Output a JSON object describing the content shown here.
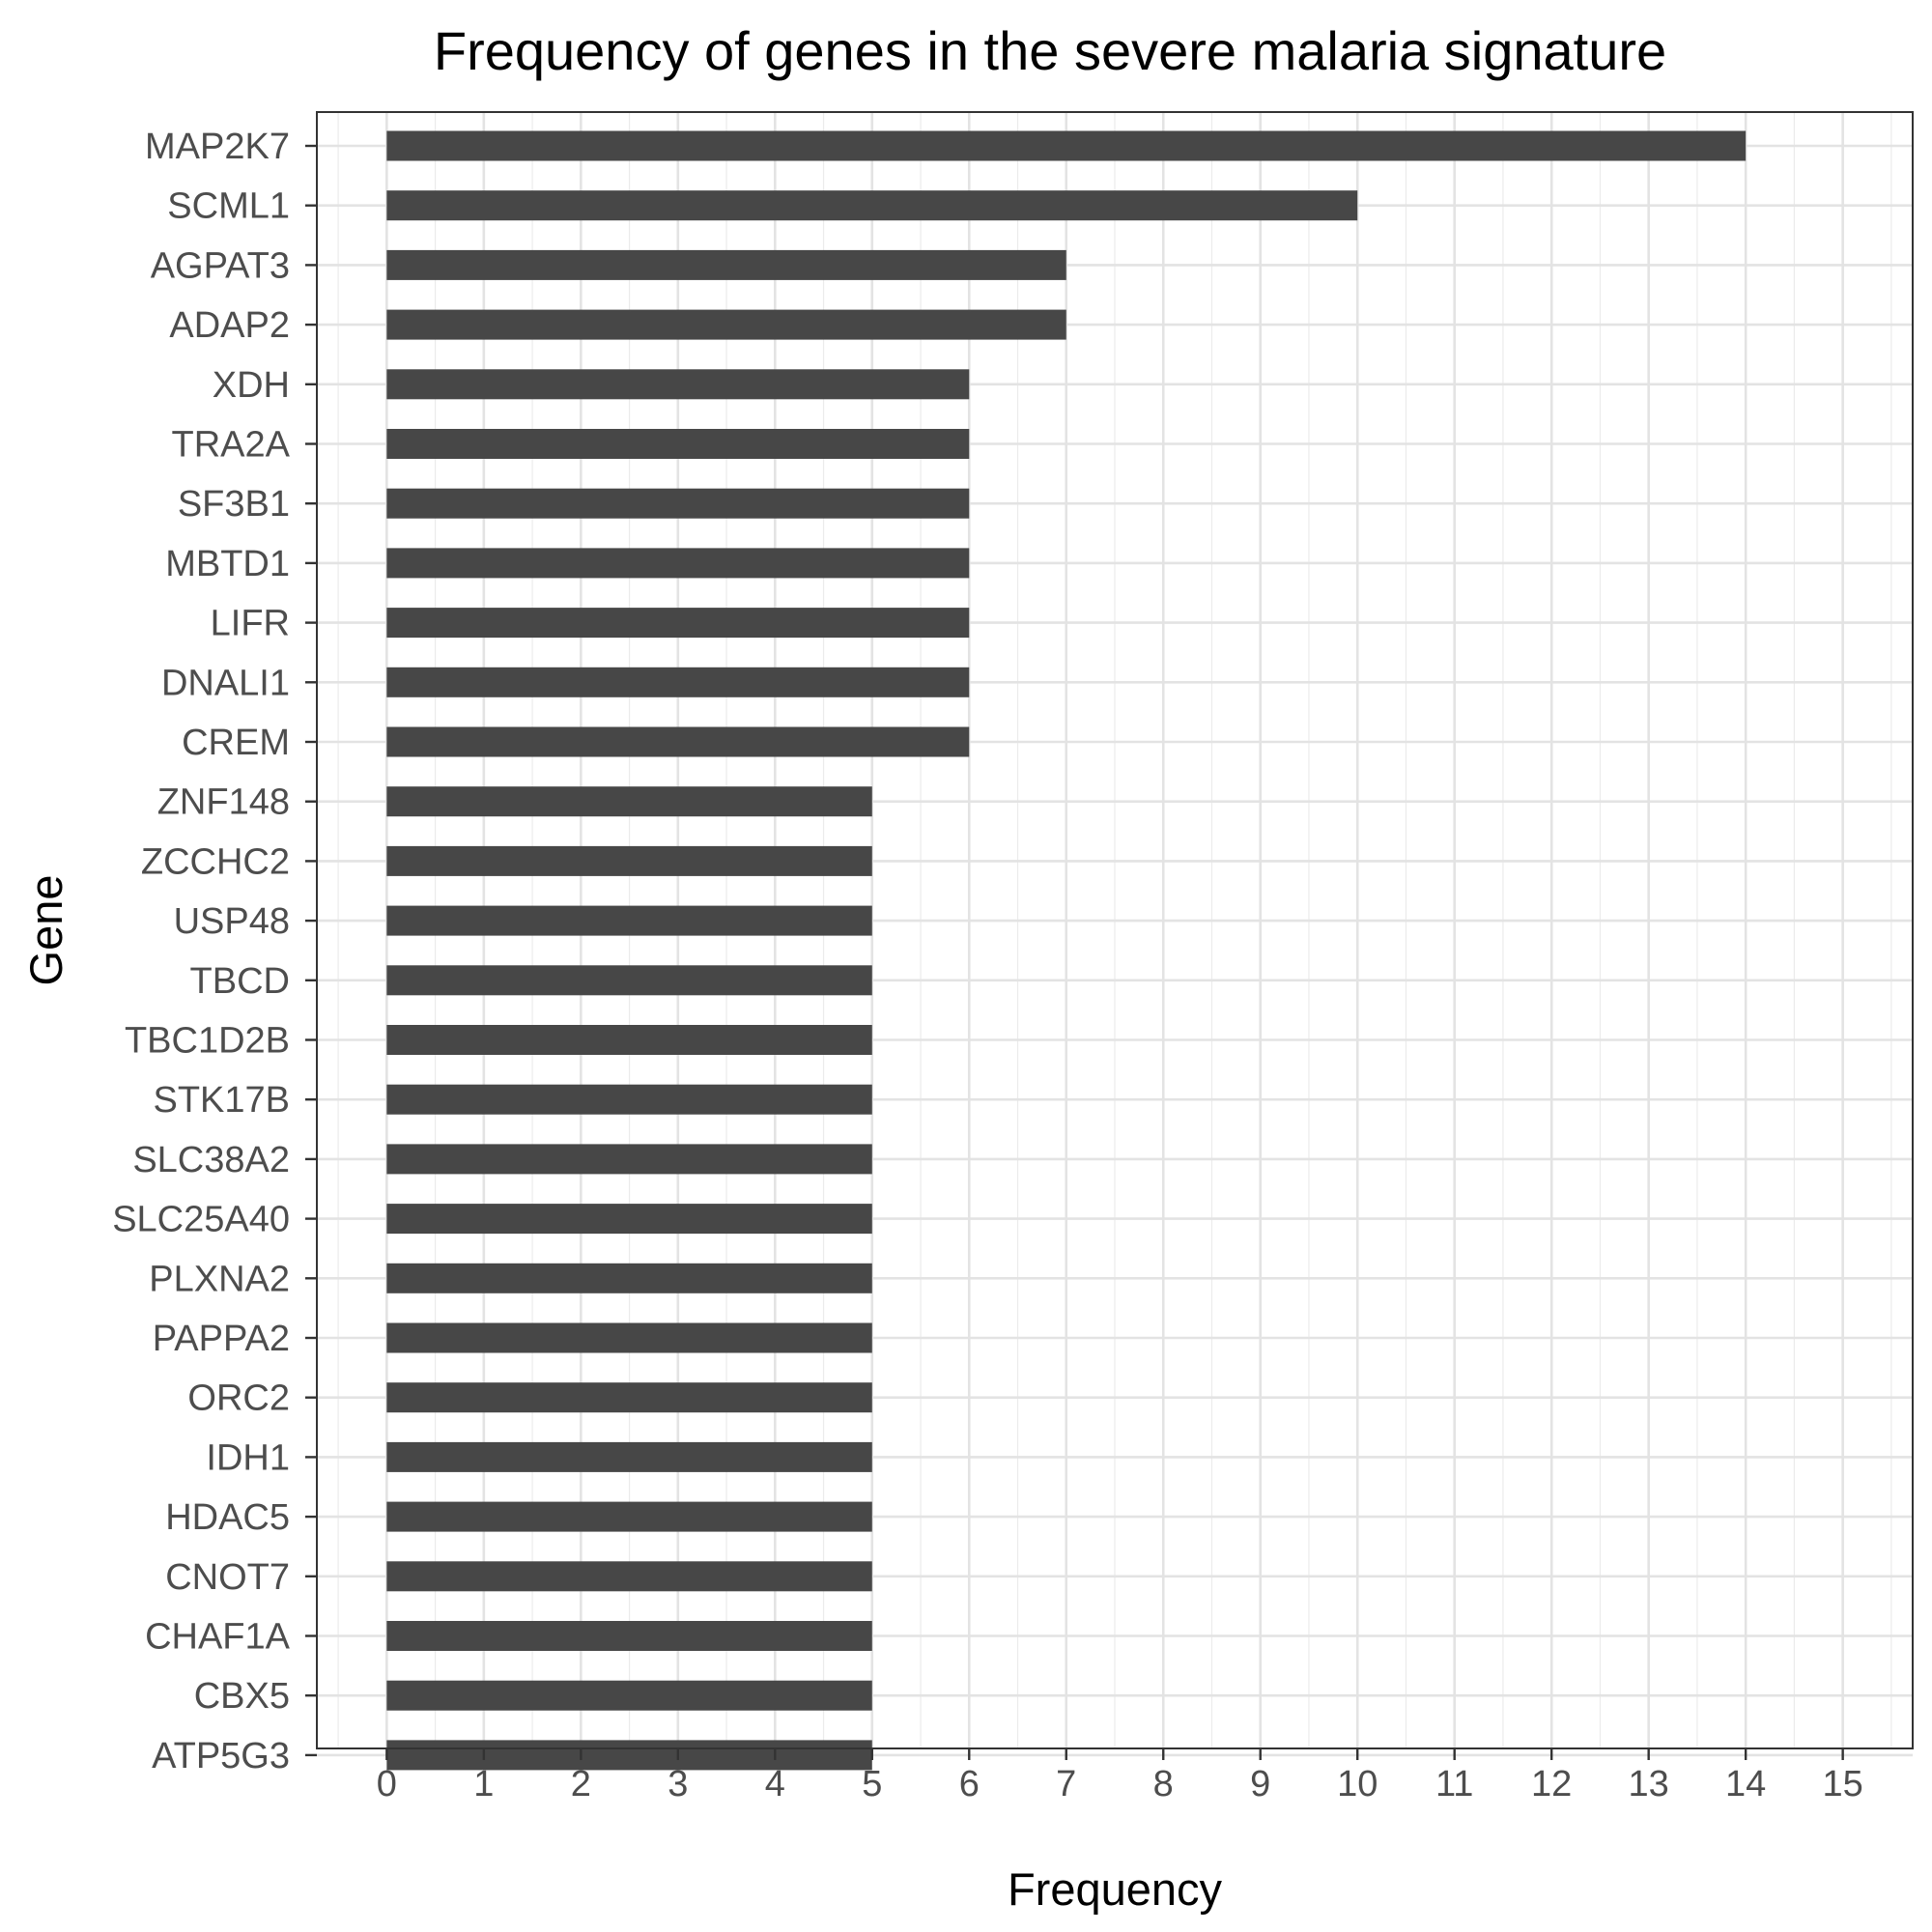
{
  "chart_data": {
    "type": "bar",
    "orientation": "horizontal",
    "title": "Frequency of genes in the severe malaria signature",
    "xlabel": "Frequency",
    "ylabel": "Gene",
    "xlim": [
      -0.72,
      15.72
    ],
    "xticks": [
      "0",
      "1",
      "2",
      "3",
      "4",
      "5",
      "6",
      "7",
      "8",
      "9",
      "10",
      "11",
      "12",
      "13",
      "14",
      "15"
    ],
    "grid": true,
    "bar_color": "#474747",
    "categories": [
      "MAP2K7",
      "SCML1",
      "AGPAT3",
      "ADAP2",
      "XDH",
      "TRA2A",
      "SF3B1",
      "MBTD1",
      "LIFR",
      "DNALI1",
      "CREM",
      "ZNF148",
      "ZCCHC2",
      "USP48",
      "TBCD",
      "TBC1D2B",
      "STK17B",
      "SLC38A2",
      "SLC25A40",
      "PLXNA2",
      "PAPPA2",
      "ORC2",
      "IDH1",
      "HDAC5",
      "CNOT7",
      "CHAF1A",
      "CBX5",
      "ATP5G3"
    ],
    "values": [
      14,
      10,
      7,
      7,
      6,
      6,
      6,
      6,
      6,
      6,
      6,
      5,
      5,
      5,
      5,
      5,
      5,
      5,
      5,
      5,
      5,
      5,
      5,
      5,
      5,
      5,
      5,
      5
    ]
  }
}
